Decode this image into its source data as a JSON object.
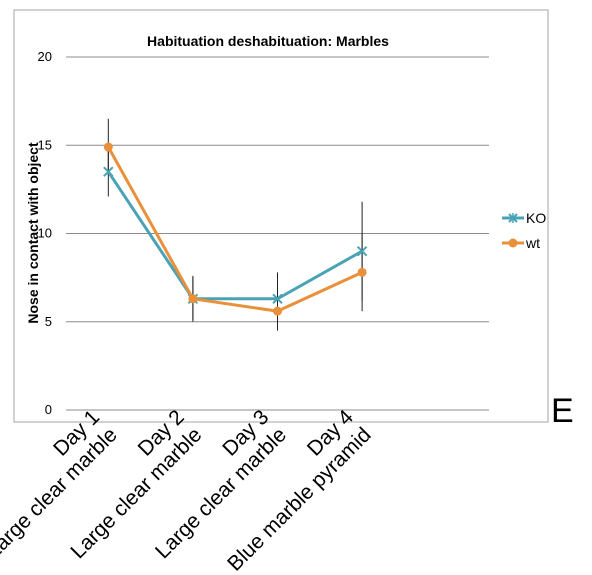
{
  "panel_letter": "E",
  "chart_data": {
    "type": "line",
    "title": "Habituation deshabituation: Marbles",
    "xlabel": "",
    "ylabel": "Nose in contact with object",
    "ylim": [
      0,
      20
    ],
    "yticks": [
      0,
      5,
      10,
      15,
      20
    ],
    "grid": true,
    "legend_placement": "right",
    "categories": [
      [
        "Day 1",
        "Large clear marble"
      ],
      [
        "Day 2",
        "Large clear marble"
      ],
      [
        "Day 3",
        "Large clear marble"
      ],
      [
        "Day 4",
        "Blue marble pyramid"
      ]
    ],
    "series": [
      {
        "name": "KO",
        "color": "#4aa3b5",
        "marker": "x",
        "values": [
          13.5,
          6.3,
          6.3,
          9.0
        ],
        "error": [
          1.4,
          1.3,
          1.5,
          2.8
        ]
      },
      {
        "name": "wt",
        "color": "#e8903a",
        "marker": "circle",
        "values": [
          14.9,
          6.3,
          5.6,
          7.8
        ],
        "error": [
          1.6,
          1.2,
          1.1,
          2.2
        ]
      }
    ]
  }
}
